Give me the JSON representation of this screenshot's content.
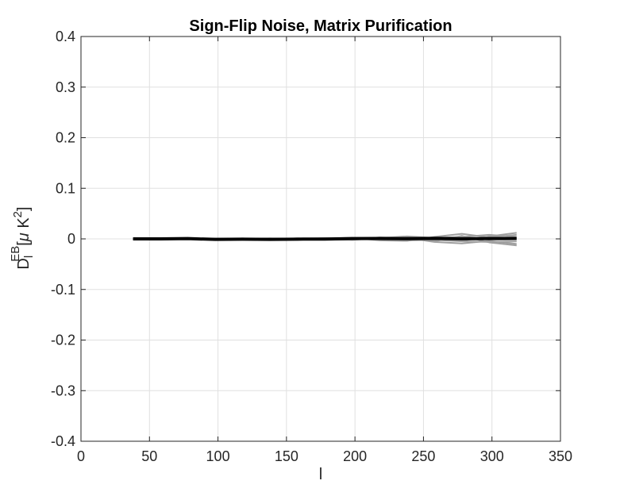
{
  "chart_data": {
    "type": "line",
    "title": "Sign-Flip Noise, Matrix Purification",
    "xlabel": "l",
    "ylabel": {
      "base": "D",
      "subscript": "l",
      "superscript": "EB",
      "bracket_open": "[",
      "unit_mu": "μ",
      "unit_K": " K",
      "unit_exp": "2",
      "bracket_close": "]"
    },
    "xlim": [
      0,
      350
    ],
    "ylim": [
      -0.4,
      0.4
    ],
    "xticks": [
      0,
      50,
      100,
      150,
      200,
      250,
      300,
      350
    ],
    "xtick_labels": [
      "0",
      "50",
      "100",
      "150",
      "200",
      "250",
      "300",
      "350"
    ],
    "yticks": [
      -0.4,
      -0.3,
      -0.2,
      -0.1,
      0,
      0.1,
      0.2,
      0.3,
      0.4
    ],
    "ytick_labels": [
      "-0.4",
      "-0.3",
      "-0.2",
      "-0.1",
      "0",
      "0.1",
      "0.2",
      "0.3",
      "0.4"
    ],
    "grid": true,
    "colors": {
      "background": "#ffffff",
      "grid": "#e0e0e0",
      "axis": "#262626",
      "simulations": "#a0a0a0",
      "mean": "#000000"
    },
    "x": [
      38,
      58,
      78,
      98,
      118,
      138,
      158,
      178,
      198,
      218,
      238,
      258,
      278,
      298,
      318
    ],
    "series": [
      {
        "role": "simulation",
        "values": [
          0,
          0.0005,
          -0.0005,
          0.0008,
          -0.001,
          0.001,
          -0.0012,
          0.0015,
          -0.001,
          0.0025,
          -0.002,
          0.003,
          -0.004,
          0.005,
          0.012
        ]
      },
      {
        "role": "simulation",
        "values": [
          0,
          -0.0005,
          0.0006,
          -0.0008,
          0.001,
          -0.0012,
          0.0012,
          -0.0015,
          0.0018,
          -0.002,
          0.004,
          -0.005,
          0.006,
          -0.007,
          -0.013
        ]
      },
      {
        "role": "simulation",
        "values": [
          0,
          0.0003,
          0.0004,
          -0.0004,
          0.0008,
          0.0006,
          -0.0009,
          0.001,
          0.002,
          -0.003,
          -0.004,
          0.004,
          0.01,
          0.003,
          0.008
        ]
      },
      {
        "role": "simulation",
        "values": [
          0,
          -0.0004,
          -0.0003,
          0.0005,
          -0.0006,
          -0.0008,
          0.001,
          -0.0012,
          -0.0015,
          0.003,
          0.002,
          -0.006,
          -0.009,
          -0.004,
          -0.01
        ]
      },
      {
        "role": "simulation",
        "values": [
          0,
          0.0006,
          -0.0002,
          -0.0006,
          0.0004,
          0.0009,
          0.0005,
          0.0012,
          -0.002,
          0.0015,
          0.005,
          0.002,
          0.004,
          0.008,
          0.004
        ]
      },
      {
        "role": "simulation",
        "values": [
          0,
          -0.0002,
          0.0002,
          0.0003,
          -0.0003,
          -0.0004,
          -0.0006,
          -0.0008,
          0.001,
          -0.0012,
          -0.003,
          -0.002,
          -0.005,
          -0.006,
          -0.005
        ]
      },
      {
        "role": "mean",
        "values": [
          0,
          0,
          0.0005,
          -0.001,
          -0.0005,
          -0.001,
          -0.0005,
          -0.0003,
          0.0005,
          0.0007,
          0.0003,
          0.001,
          0.0002,
          0.0005,
          0.0008
        ]
      }
    ]
  }
}
